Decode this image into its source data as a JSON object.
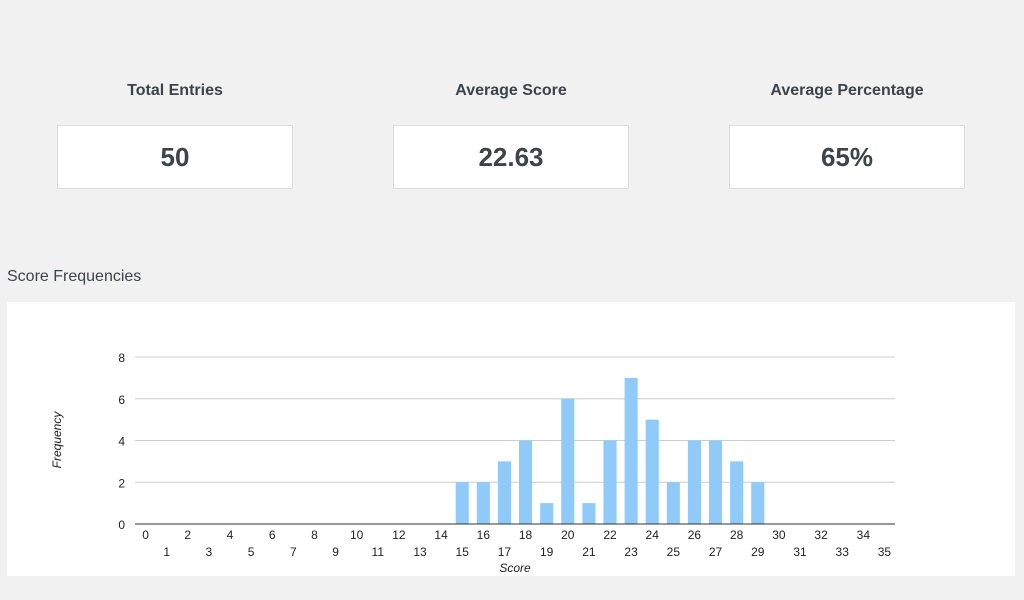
{
  "stats": [
    {
      "label": "Total Entries",
      "value": "50"
    },
    {
      "label": "Average Score",
      "value": "22.63"
    },
    {
      "label": "Average Percentage",
      "value": "65%"
    }
  ],
  "section_title": "Score Frequencies",
  "colors": {
    "bar": "#90caf9",
    "grid": "#cccccc",
    "axis": "#333333",
    "text": "#222222"
  },
  "chart_data": {
    "type": "bar",
    "title": "",
    "xlabel": "Score",
    "ylabel": "Frequency",
    "categories": [
      "0",
      "1",
      "2",
      "3",
      "4",
      "5",
      "6",
      "7",
      "8",
      "9",
      "10",
      "11",
      "12",
      "13",
      "14",
      "15",
      "16",
      "17",
      "18",
      "19",
      "20",
      "21",
      "22",
      "23",
      "24",
      "25",
      "26",
      "27",
      "28",
      "29",
      "30",
      "31",
      "32",
      "33",
      "34",
      "35"
    ],
    "values": [
      0,
      0,
      0,
      0,
      0,
      0,
      0,
      0,
      0,
      0,
      0,
      0,
      0,
      0,
      0,
      2,
      2,
      3,
      4,
      1,
      6,
      1,
      4,
      7,
      5,
      2,
      4,
      4,
      3,
      2,
      0,
      0,
      0,
      0,
      0,
      0
    ],
    "ylim": [
      0,
      8
    ],
    "yticks": [
      "0",
      "2",
      "4",
      "6",
      "8"
    ],
    "grid": true,
    "legend": false
  }
}
